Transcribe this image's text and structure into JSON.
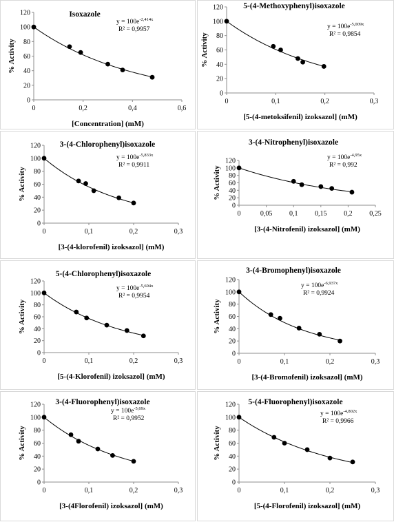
{
  "chart_data": [
    {
      "type": "scatter",
      "title": "Isoxazole",
      "xlabel": "[Concentration] (mM)",
      "ylabel": "% Activity",
      "equation_prefix": "y = 100e",
      "exponent": "-2,414x",
      "r2": "R² = 0,9957",
      "k": 2.414,
      "xlim": [
        0,
        0.6
      ],
      "xticks": [
        0,
        0.2,
        0.4,
        0.6
      ],
      "xtick_labels": [
        "0",
        "0,2",
        "0,4",
        "0,6"
      ],
      "ylim": [
        0,
        120
      ],
      "yticks": [
        0,
        20,
        40,
        60,
        80,
        100,
        120
      ],
      "x": [
        0,
        0.145,
        0.19,
        0.3,
        0.36,
        0.48
      ],
      "y": [
        100,
        73,
        65,
        49,
        41,
        31
      ]
    },
    {
      "type": "scatter",
      "title": "5-(4-Methoxyphenyl)isoxazole",
      "xlabel": "[5-(4-metoksifenil) izoksazol] (mM)",
      "ylabel": "% Activity",
      "equation_prefix": "y = 100e",
      "exponent": "-5,009x",
      "r2": "R² = 0,9854",
      "k": 5.009,
      "xlim": [
        0,
        0.3
      ],
      "xticks": [
        0,
        0.1,
        0.2,
        0.3
      ],
      "xtick_labels": [
        "0",
        "0,1",
        "0,2",
        "0,3"
      ],
      "ylim": [
        0,
        120
      ],
      "yticks": [
        0,
        20,
        40,
        60,
        80,
        100,
        120
      ],
      "x": [
        0,
        0.095,
        0.11,
        0.145,
        0.155,
        0.198
      ],
      "y": [
        100,
        65,
        60,
        48,
        43,
        37
      ]
    },
    {
      "type": "scatter",
      "title": "3-(4-Chlorophenyl)isoxazole",
      "xlabel": "[3-(4-klorofenil) izoksazol] (mM)",
      "ylabel": "% Activity",
      "equation_prefix": "y = 100e",
      "exponent": "-5,833x",
      "r2": "R² = 0,9911",
      "k": 5.833,
      "xlim": [
        0,
        0.3
      ],
      "xticks": [
        0,
        0.1,
        0.2,
        0.3
      ],
      "xtick_labels": [
        "0",
        "0,1",
        "0,2",
        "0,3"
      ],
      "ylim": [
        0,
        120
      ],
      "yticks": [
        0,
        20,
        40,
        60,
        80,
        100,
        120
      ],
      "x": [
        0,
        0.077,
        0.093,
        0.111,
        0.167,
        0.2
      ],
      "y": [
        100,
        65,
        61,
        50,
        39,
        31
      ]
    },
    {
      "type": "scatter",
      "title": "3-(4-Nitrophenyl)isoxazole",
      "xlabel": "[3-(4-Nitrofenil) izoksazol] (mM)",
      "ylabel": "% Activity",
      "equation_prefix": "y = 100e",
      "exponent": "-4,95x",
      "r2": "R² = 0,992",
      "k": 4.95,
      "xlim": [
        0,
        0.25
      ],
      "xticks": [
        0,
        0.05,
        0.1,
        0.15,
        0.2,
        0.25
      ],
      "xtick_labels": [
        "0",
        "0,05",
        "0,1",
        "0,15",
        "0,2",
        "0,25"
      ],
      "ylim": [
        0,
        120
      ],
      "yticks": [
        0,
        20,
        40,
        60,
        80,
        100,
        120
      ],
      "x": [
        0,
        0.1,
        0.115,
        0.15,
        0.17,
        0.207
      ],
      "y": [
        100,
        64,
        55,
        50,
        45,
        35
      ]
    },
    {
      "type": "scatter",
      "title": "5-(4-Chlorophenyl)isoxazole",
      "xlabel": "[5-(4-Klorofenil) izoksazol] (mM)",
      "ylabel": "% Activity",
      "equation_prefix": "y = 100e",
      "exponent": "-5,604x",
      "r2": "R² = 0,9954",
      "k": 5.604,
      "xlim": [
        0,
        0.3
      ],
      "xticks": [
        0,
        0.1,
        0.2,
        0.3
      ],
      "xtick_labels": [
        "0",
        "0,1",
        "0,2",
        "0,3"
      ],
      "ylim": [
        0,
        120
      ],
      "yticks": [
        0,
        20,
        40,
        60,
        80,
        100,
        120
      ],
      "x": [
        0,
        0.072,
        0.095,
        0.14,
        0.185,
        0.222
      ],
      "y": [
        100,
        68,
        58,
        46,
        37,
        28
      ]
    },
    {
      "type": "scatter",
      "title": "3-(4-Bromophenyl)isoxazole",
      "xlabel": "[3-(4-Bromofenil)  izoksazol] (mM)",
      "ylabel": "% Activity",
      "equation_prefix": "y = 100e",
      "exponent": "-6,937x",
      "r2": "R² = 0,9924",
      "k": 6.937,
      "xlim": [
        0,
        0.3
      ],
      "xticks": [
        0,
        0.1,
        0.2,
        0.3
      ],
      "xtick_labels": [
        "0",
        "0,1",
        "0,2",
        "0,3"
      ],
      "ylim": [
        0,
        120
      ],
      "yticks": [
        0,
        20,
        40,
        60,
        80,
        100,
        120
      ],
      "x": [
        0,
        0.07,
        0.09,
        0.132,
        0.177,
        0.222
      ],
      "y": [
        100,
        63,
        57,
        41,
        31,
        20
      ]
    },
    {
      "type": "scatter",
      "title": "3-(4-Fluorophenyl)isoxazole",
      "xlabel": "[3-(4Florofenil) izoksazol] (mM)",
      "ylabel": "% Activity",
      "equation_prefix": "y = 100e",
      "exponent": "-5,69x",
      "r2": "R² = 0,9952",
      "k": 5.69,
      "xlim": [
        0,
        0.3
      ],
      "xticks": [
        0,
        0.1,
        0.2,
        0.3
      ],
      "xtick_labels": [
        "0",
        "0,1",
        "0,2",
        "0,3"
      ],
      "ylim": [
        0,
        120
      ],
      "yticks": [
        0,
        20,
        40,
        60,
        80,
        100,
        120
      ],
      "x": [
        0,
        0.06,
        0.077,
        0.12,
        0.153,
        0.2
      ],
      "y": [
        100,
        73,
        63,
        51,
        41,
        32
      ]
    },
    {
      "type": "scatter",
      "title": "5-(4-Fluorophenyl)isoxazole",
      "xlabel": "[5-(4-Florofenil) izoksazol] (mM)",
      "ylabel": "% Activity",
      "equation_prefix": "y = 100e",
      "exponent": "-4,802x",
      "r2": "R² = 0,9966",
      "k": 4.802,
      "xlim": [
        0,
        0.3
      ],
      "xticks": [
        0,
        0.1,
        0.2,
        0.3
      ],
      "xtick_labels": [
        "0",
        "0,1",
        "0,2",
        "0,3"
      ],
      "ylim": [
        0,
        120
      ],
      "yticks": [
        0,
        20,
        40,
        60,
        80,
        100,
        120
      ],
      "x": [
        0,
        0.077,
        0.1,
        0.15,
        0.2,
        0.25
      ],
      "y": [
        100,
        69,
        60,
        50,
        37,
        31
      ]
    }
  ]
}
